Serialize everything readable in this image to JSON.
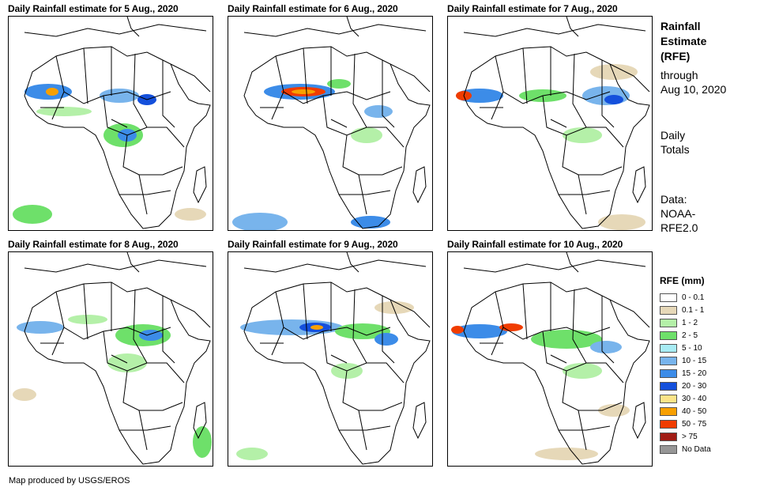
{
  "panels": [
    {
      "title": "Daily Rainfall estimate for 5 Aug., 2020"
    },
    {
      "title": "Daily Rainfall estimate for 6 Aug., 2020"
    },
    {
      "title": "Daily Rainfall estimate for 7 Aug., 2020"
    },
    {
      "title": "Daily Rainfall estimate for 8 Aug., 2020"
    },
    {
      "title": "Daily Rainfall estimate for 9 Aug., 2020"
    },
    {
      "title": "Daily Rainfall estimate for 10 Aug., 2020"
    }
  ],
  "sidebar": {
    "title_line1": "Rainfall",
    "title_line2": "Estimate",
    "title_line3": "(RFE)",
    "through_line1": "through",
    "through_line2": "Aug 10, 2020",
    "totals_line1": "Daily",
    "totals_line2": "Totals",
    "data_line1": "Data:",
    "data_line2": "NOAA-",
    "data_line3": "RFE2.0"
  },
  "legend": {
    "title": "RFE (mm)",
    "items": [
      {
        "label": "0 - 0.1",
        "color": "#ffffff"
      },
      {
        "label": "0.1 - 1",
        "color": "#e6d8b8"
      },
      {
        "label": "1 - 2",
        "color": "#b4f0a8"
      },
      {
        "label": "2 - 5",
        "color": "#6ee06a"
      },
      {
        "label": "5 - 10",
        "color": "#a8ecf4"
      },
      {
        "label": "10 - 15",
        "color": "#78b4ec"
      },
      {
        "label": "15 - 20",
        "color": "#3c8ce8"
      },
      {
        "label": "20 - 30",
        "color": "#1450dc"
      },
      {
        "label": "30 - 40",
        "color": "#fce488"
      },
      {
        "label": "40 - 50",
        "color": "#f8a000"
      },
      {
        "label": "50 - 75",
        "color": "#f03c00"
      },
      {
        "label": "> 75",
        "color": "#a01c14"
      },
      {
        "label": "No Data",
        "color": "#969696"
      }
    ]
  },
  "credit": "Map produced by USGS/EROS"
}
